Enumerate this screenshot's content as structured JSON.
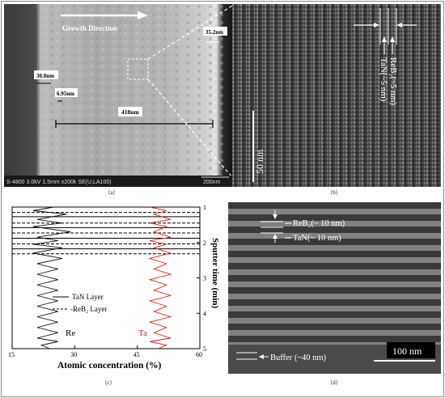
{
  "panel_a": {
    "growth_direction": "Growth Direction",
    "measurements": [
      "35.2nm",
      "30.8nm",
      "6.95nm",
      "418nm"
    ],
    "info_bar_left": "S-4800 3.0kV 1.5mm x200k SE(U,LA100)",
    "info_bar_right": "200nm",
    "caption": "（a）"
  },
  "panel_b": {
    "label_reb2": "ReB₂(~5 nm)",
    "label_tan": "TaN(~5 nm)",
    "scale": "50 nm",
    "caption": "（b）"
  },
  "panel_c": {
    "caption": "（c）",
    "chart_data": {
      "type": "line",
      "xlabel": "Atomic concentration (%)",
      "ylabel": "Sputter time (min)",
      "xlim": [
        15,
        60
      ],
      "ylim": [
        1,
        5
      ],
      "xticks": [
        "15",
        "30",
        "45",
        "60"
      ],
      "yticks": [
        "1",
        "2",
        "3",
        "4",
        "5"
      ],
      "legend": [
        "TaN Layer",
        "-ReB₂ Layer"
      ],
      "series_labels": [
        "Re",
        "Ta"
      ],
      "series": [
        {
          "name": "Re",
          "color": "#111111",
          "x": [
            25,
            20,
            28,
            21,
            27,
            20,
            29,
            21,
            26,
            20,
            27,
            20,
            27,
            21,
            26,
            21,
            26,
            21,
            26,
            21,
            26,
            21,
            26,
            21,
            26,
            21,
            26,
            21,
            26,
            22,
            24
          ],
          "y": [
            1.0,
            1.1,
            1.2,
            1.35,
            1.45,
            1.55,
            1.7,
            1.85,
            1.95,
            2.05,
            2.15,
            2.3,
            2.45,
            2.6,
            2.75,
            2.9,
            3.05,
            3.2,
            3.35,
            3.5,
            3.65,
            3.8,
            3.95,
            4.1,
            4.25,
            4.4,
            4.55,
            4.7,
            4.8,
            4.9,
            5.0
          ]
        },
        {
          "name": "Ta",
          "color": "#e02020",
          "x": [
            48,
            52,
            49,
            53,
            48,
            52,
            49,
            53,
            48,
            52,
            49,
            53,
            48,
            52,
            49,
            53,
            48,
            52,
            49,
            53,
            48,
            52,
            49,
            53,
            48,
            52,
            49,
            53,
            48,
            52,
            50
          ],
          "y": [
            1.0,
            1.1,
            1.2,
            1.35,
            1.45,
            1.55,
            1.7,
            1.85,
            1.95,
            2.05,
            2.15,
            2.3,
            2.45,
            2.6,
            2.75,
            2.9,
            3.05,
            3.2,
            3.35,
            3.5,
            3.65,
            3.8,
            3.95,
            4.1,
            4.25,
            4.4,
            4.55,
            4.7,
            4.8,
            4.9,
            5.0
          ]
        }
      ],
      "solid_lines_y": [
        1.27,
        1.58,
        1.88,
        2.18
      ],
      "dashed_lines_y": [
        1.15,
        1.45,
        1.73,
        2.04,
        2.32
      ]
    }
  },
  "panel_d": {
    "label_reb2": "ReB₂(~ 10 nm)",
    "label_tan": "TaN(~ 10 nm)",
    "label_buffer": "Buffer (~40 nm)",
    "scale": "100 nm",
    "caption": "（d）"
  }
}
